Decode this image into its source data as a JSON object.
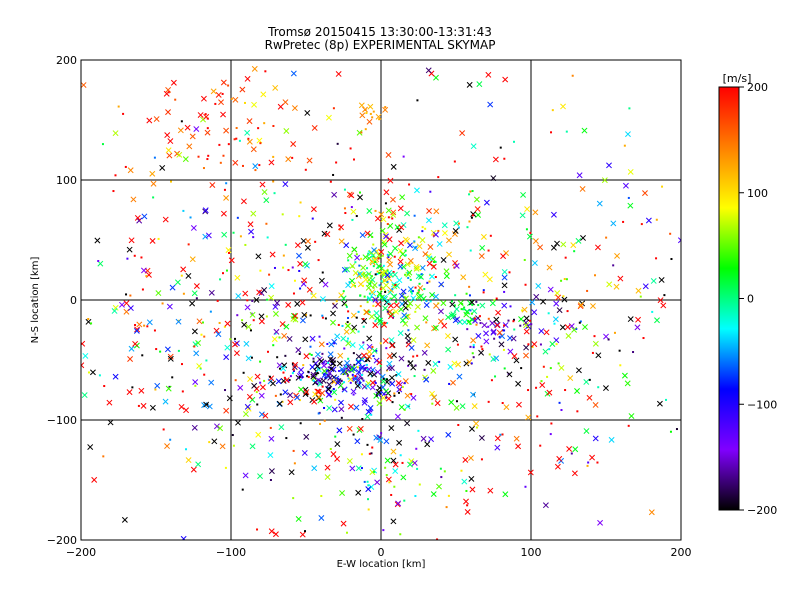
{
  "chart_data": {
    "type": "scatter",
    "title": "Tromsø 20150415 13:30:00-13:31:43",
    "subtitle": "RwPretec (8p) EXPERIMENTAL SKYMAP",
    "xlabel": "E-W location [km]",
    "ylabel": "N-S location [km]",
    "xlim": [
      -200,
      200
    ],
    "ylim": [
      -200,
      200
    ],
    "x_ticks": [
      -200,
      -100,
      0,
      100,
      200
    ],
    "y_ticks": [
      -200,
      -100,
      0,
      100,
      200
    ],
    "x_tick_labels": [
      "−200",
      "−100",
      "0",
      "100",
      "200"
    ],
    "y_tick_labels": [
      "−200",
      "−100",
      "0",
      "100",
      "200"
    ],
    "grid": true,
    "colorbar": {
      "label": "[m/s]",
      "range": [
        -200,
        200
      ],
      "ticks": [
        200,
        100,
        0,
        -100,
        -200
      ],
      "tick_labels": [
        "200",
        "100",
        "0",
        "−100",
        "−200"
      ],
      "colormap": "rainbow-black-to-red",
      "stops": [
        "#000000",
        "#8000ff",
        "#0000ff",
        "#00ffff",
        "#00ff00",
        "#ffff00",
        "#ff8000",
        "#ff0000"
      ]
    },
    "marker_types": [
      "x",
      "dot"
    ],
    "clusters": [
      {
        "x": -25,
        "y": -62,
        "sx": 22,
        "sy": 12,
        "count": 220,
        "velocity": -130,
        "vspread": 90
      },
      {
        "x": 5,
        "y": 12,
        "sx": 16,
        "sy": 16,
        "count": 170,
        "velocity": 30,
        "vspread": 50
      },
      {
        "x": 15,
        "y": 45,
        "sx": 22,
        "sy": 15,
        "count": 70,
        "velocity": 80,
        "vspread": 70
      },
      {
        "x": 55,
        "y": -8,
        "sx": 6,
        "sy": 6,
        "count": 30,
        "velocity": 20,
        "vspread": 15
      },
      {
        "x": 80,
        "y": -25,
        "sx": 12,
        "sy": 10,
        "count": 40,
        "velocity": -140,
        "vspread": 40
      },
      {
        "x": 0,
        "y": -40,
        "sx": 110,
        "sy": 70,
        "count": 650,
        "velocity": 0,
        "vspread": 220
      },
      {
        "x": 0,
        "y": 0,
        "sx": 120,
        "sy": 100,
        "count": 500,
        "velocity": 80,
        "vspread": 200
      },
      {
        "x": -100,
        "y": 150,
        "sx": 30,
        "sy": 25,
        "count": 80,
        "velocity": 180,
        "vspread": 50
      },
      {
        "x": -5,
        "y": 155,
        "sx": 5,
        "sy": 6,
        "count": 15,
        "velocity": 130,
        "vspread": 10
      },
      {
        "x": 10,
        "y": -150,
        "sx": 25,
        "sy": 10,
        "count": 30,
        "velocity": 20,
        "vspread": 50
      }
    ]
  }
}
